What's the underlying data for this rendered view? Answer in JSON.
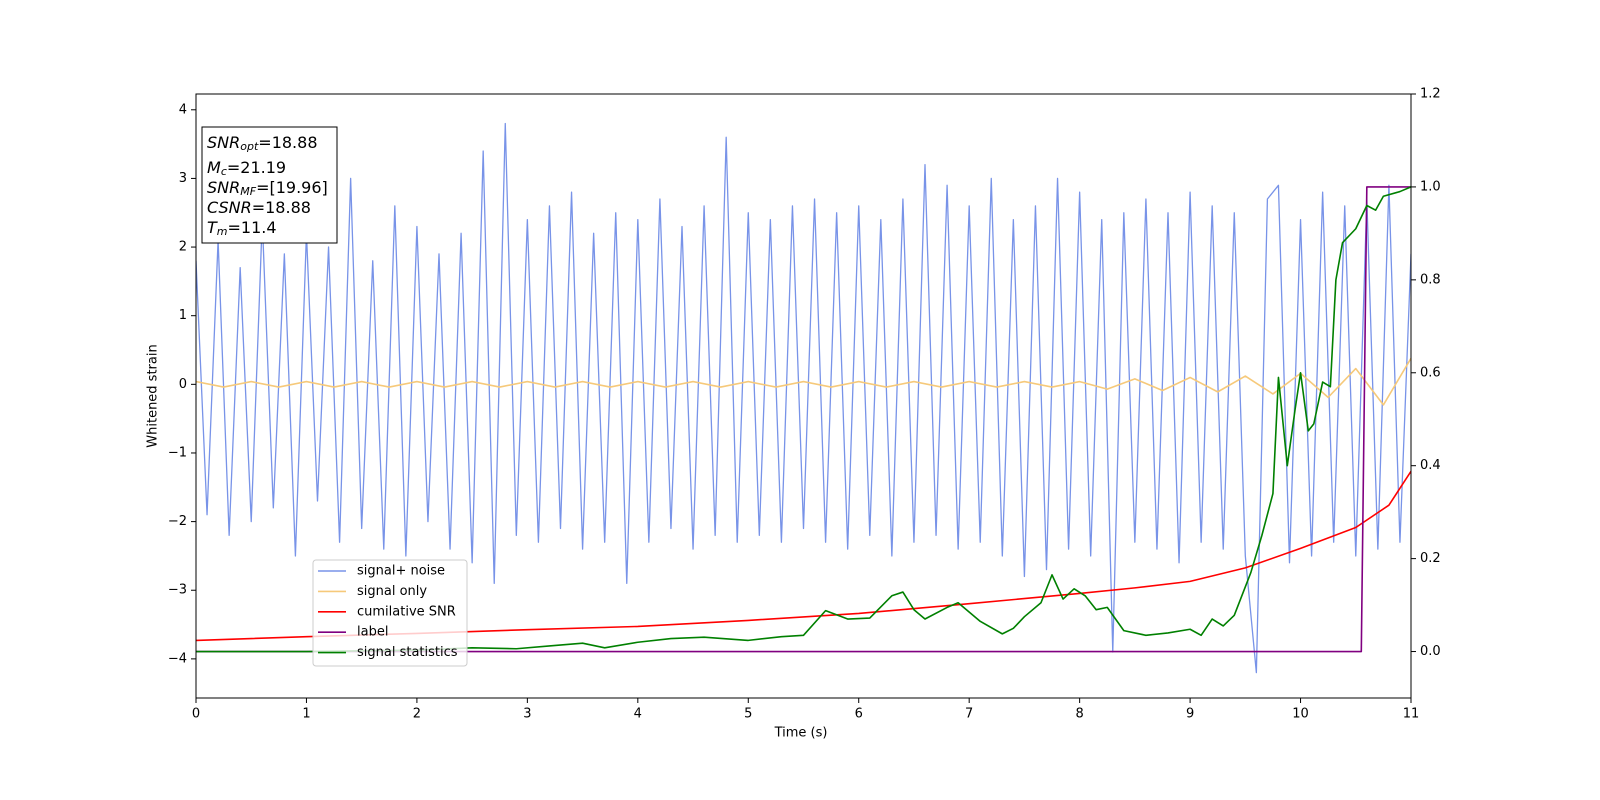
{
  "chart_data": {
    "type": "line",
    "xlabel": "Time (s)",
    "ylabel": "Whitened strain",
    "xlim": [
      0,
      11
    ],
    "ylim": [
      -4.57,
      4.23
    ],
    "y2lim": [
      -0.1,
      1.2
    ],
    "xticks": [
      0,
      1,
      2,
      3,
      4,
      5,
      6,
      7,
      8,
      9,
      10,
      11
    ],
    "yticks": [
      {
        "value": -4,
        "label": "−4"
      },
      {
        "value": -3,
        "label": "−3"
      },
      {
        "value": -2,
        "label": "−2"
      },
      {
        "value": -1,
        "label": "−1"
      },
      0,
      1,
      2,
      3,
      4
    ],
    "y2ticks": [
      {
        "value": 0,
        "label": "0.0"
      },
      0.2,
      0.4,
      0.6,
      0.8,
      {
        "value": 1,
        "label": "1.0"
      },
      1.2
    ],
    "legend": "lower left",
    "annotations": [
      {
        "symbol": "SNR",
        "subscript": "opt",
        "text": "=18.88"
      },
      {
        "symbol": "M",
        "subscript": "c",
        "text": "=21.19"
      },
      {
        "symbol": "SNR",
        "subscript": "MF",
        "text": "=[19.96]"
      },
      {
        "symbol": "CSNR",
        "text": "=18.88"
      },
      {
        "symbol": "T",
        "subscript": "m",
        "text": "=11.4"
      }
    ],
    "series": [
      {
        "name": "signal+ noise",
        "color": "#7893e8",
        "x": [
          0,
          0.1,
          0.2,
          0.3,
          0.4,
          0.5,
          0.6,
          0.7,
          0.8,
          0.9,
          1,
          1.1,
          1.2,
          1.3,
          1.4,
          1.5,
          1.6,
          1.7,
          1.8,
          1.9,
          2,
          2.1,
          2.2,
          2.3,
          2.4,
          2.5,
          2.6,
          2.7,
          2.8,
          2.9,
          3,
          3.1,
          3.2,
          3.3,
          3.4,
          3.5,
          3.6,
          3.7,
          3.8,
          3.9,
          4,
          4.1,
          4.2,
          4.3,
          4.4,
          4.5,
          4.6,
          4.7,
          4.8,
          4.9,
          5,
          5.1,
          5.2,
          5.3,
          5.4,
          5.5,
          5.6,
          5.7,
          5.8,
          5.9,
          6,
          6.1,
          6.2,
          6.3,
          6.4,
          6.5,
          6.6,
          6.7,
          6.8,
          6.9,
          7,
          7.1,
          7.2,
          7.3,
          7.4,
          7.5,
          7.6,
          7.7,
          7.8,
          7.9,
          8,
          8.1,
          8.2,
          8.3,
          8.4,
          8.5,
          8.6,
          8.7,
          8.8,
          8.9,
          9,
          9.1,
          9.2,
          9.3,
          9.4,
          9.5,
          9.6,
          9.7,
          9.8,
          9.9,
          10,
          10.1,
          10.2,
          10.3,
          10.4,
          10.5,
          10.6,
          10.7,
          10.8,
          10.9,
          11
        ],
        "values": [
          1.8,
          -1.9,
          2.1,
          -2.2,
          1.7,
          -2.0,
          2.4,
          -1.8,
          1.9,
          -2.5,
          2.2,
          -1.7,
          2.0,
          -2.3,
          3.0,
          -2.1,
          1.8,
          -2.4,
          2.6,
          -2.5,
          2.3,
          -2.0,
          1.9,
          -2.4,
          2.2,
          -2.6,
          3.4,
          -2.9,
          3.8,
          -2.2,
          2.4,
          -2.3,
          2.6,
          -2.1,
          2.8,
          -2.4,
          2.2,
          -2.3,
          2.5,
          -2.9,
          2.4,
          -2.3,
          2.7,
          -2.1,
          2.3,
          -2.4,
          2.6,
          -2.2,
          3.6,
          -2.3,
          2.5,
          -2.2,
          2.4,
          -2.3,
          2.6,
          -2.1,
          2.7,
          -2.3,
          2.5,
          -2.4,
          2.6,
          -2.2,
          2.4,
          -2.5,
          2.7,
          -2.3,
          3.2,
          -2.2,
          2.9,
          -2.4,
          2.6,
          -2.3,
          3.0,
          -2.5,
          2.4,
          -2.8,
          2.6,
          -2.7,
          3.0,
          -2.4,
          2.8,
          -2.5,
          2.4,
          -3.9,
          2.5,
          -2.3,
          2.7,
          -2.4,
          2.5,
          -2.6,
          2.8,
          -2.3,
          2.6,
          -2.4,
          2.5,
          -2.5,
          -4.2,
          2.7,
          2.9,
          -2.6,
          2.4,
          -2.5,
          2.8,
          -2.3,
          2.6,
          -2.5,
          2.7,
          -2.4,
          2.9,
          -2.3,
          1.9
        ]
      },
      {
        "name": "signal only",
        "color": "#f6c97a",
        "x": [
          0,
          0.25,
          0.5,
          0.75,
          1,
          1.25,
          1.5,
          1.75,
          2,
          2.25,
          2.5,
          2.75,
          3,
          3.25,
          3.5,
          3.75,
          4,
          4.25,
          4.5,
          4.75,
          5,
          5.25,
          5.5,
          5.75,
          6,
          6.25,
          6.5,
          6.75,
          7,
          7.25,
          7.5,
          7.75,
          8,
          8.25,
          8.5,
          8.75,
          9,
          9.25,
          9.5,
          9.75,
          10,
          10.25,
          10.5,
          10.75,
          11
        ],
        "values": [
          0.04,
          -0.04,
          0.04,
          -0.04,
          0.04,
          -0.04,
          0.04,
          -0.04,
          0.04,
          -0.04,
          0.04,
          -0.04,
          0.04,
          -0.04,
          0.04,
          -0.04,
          0.04,
          -0.04,
          0.04,
          -0.04,
          0.04,
          -0.04,
          0.04,
          -0.04,
          0.04,
          -0.04,
          0.04,
          -0.04,
          0.04,
          -0.04,
          0.04,
          -0.04,
          0.04,
          -0.07,
          0.08,
          -0.09,
          0.1,
          -0.11,
          0.12,
          -0.14,
          0.16,
          -0.19,
          0.23,
          -0.3,
          0.38
        ]
      },
      {
        "name": "cumilative SNR",
        "color": "red",
        "axis": "y2",
        "x": [
          0,
          1,
          2,
          3,
          4,
          5,
          6,
          7,
          8,
          8.5,
          9,
          9.5,
          10,
          10.5,
          10.8,
          11
        ],
        "values": [
          0.024,
          0.032,
          0.039,
          0.047,
          0.054,
          0.067,
          0.082,
          0.103,
          0.125,
          0.137,
          0.151,
          0.18,
          0.222,
          0.267,
          0.315,
          0.388
        ]
      },
      {
        "name": "label",
        "color": "purple",
        "axis": "y2",
        "x": [
          0,
          10.55,
          10.6,
          11
        ],
        "values": [
          0,
          0,
          1,
          1
        ]
      },
      {
        "name": "signal statistics",
        "color": "green",
        "axis": "y2",
        "x": [
          0,
          1,
          2,
          2.5,
          2.9,
          3.2,
          3.5,
          3.7,
          4,
          4.3,
          4.6,
          5,
          5.3,
          5.5,
          5.7,
          5.9,
          6.1,
          6.3,
          6.4,
          6.5,
          6.6,
          6.8,
          6.9,
          7.1,
          7.3,
          7.4,
          7.5,
          7.65,
          7.75,
          7.85,
          7.95,
          8.05,
          8.15,
          8.25,
          8.4,
          8.6,
          8.8,
          9,
          9.1,
          9.2,
          9.3,
          9.4,
          9.55,
          9.65,
          9.75,
          9.8,
          9.88,
          9.95,
          10,
          10.07,
          10.12,
          10.2,
          10.27,
          10.32,
          10.38,
          10.5,
          10.6,
          10.68,
          10.75,
          10.9,
          11
        ],
        "values": [
          0,
          0,
          0.003,
          0.008,
          0.006,
          0.012,
          0.018,
          0.008,
          0.02,
          0.028,
          0.031,
          0.024,
          0.032,
          0.035,
          0.088,
          0.07,
          0.072,
          0.12,
          0.128,
          0.09,
          0.07,
          0.095,
          0.105,
          0.065,
          0.038,
          0.05,
          0.075,
          0.105,
          0.165,
          0.113,
          0.135,
          0.12,
          0.09,
          0.095,
          0.045,
          0.035,
          0.04,
          0.048,
          0.035,
          0.07,
          0.055,
          0.078,
          0.17,
          0.25,
          0.34,
          0.59,
          0.4,
          0.52,
          0.6,
          0.475,
          0.49,
          0.58,
          0.57,
          0.8,
          0.88,
          0.91,
          0.96,
          0.95,
          0.98,
          0.99,
          1
        ]
      }
    ]
  }
}
